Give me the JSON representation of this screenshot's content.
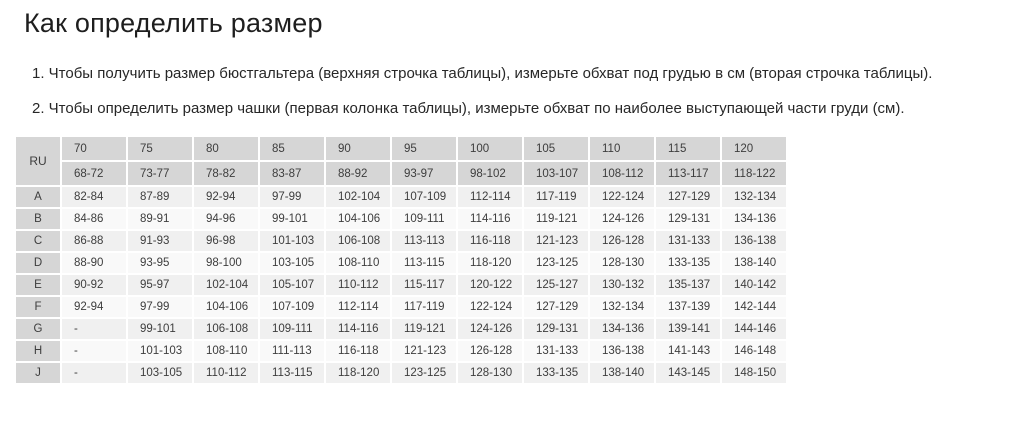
{
  "page": {
    "title": "Как определить размер",
    "instructions": {
      "0": "1. Чтобы получить размер бюстгальтера (верхняя строчка таблицы), измерьте обхват под грудью в см (вторая строчка таблицы).",
      "1": "2. Чтобы определить размер чашки (первая колонка таблицы), измерьте обхват по наиболее выступающей части груди (см)."
    }
  },
  "table": {
    "corner_label": "RU",
    "band_sizes": [
      "70",
      "75",
      "80",
      "85",
      "90",
      "95",
      "100",
      "105",
      "110",
      "115",
      "120"
    ],
    "underbust_ranges": [
      "68-72",
      "73-77",
      "78-82",
      "83-87",
      "88-92",
      "93-97",
      "98-102",
      "103-107",
      "108-112",
      "113-117",
      "118-122"
    ],
    "cup_rows": [
      {
        "cup": "A",
        "values": [
          "82-84",
          "87-89",
          "92-94",
          "97-99",
          "102-104",
          "107-109",
          "112-114",
          "117-119",
          "122-124",
          "127-129",
          "132-134"
        ]
      },
      {
        "cup": "B",
        "values": [
          "84-86",
          "89-91",
          "94-96",
          "99-101",
          "104-106",
          "109-111",
          "114-116",
          "119-121",
          "124-126",
          "129-131",
          "134-136"
        ]
      },
      {
        "cup": "C",
        "values": [
          "86-88",
          "91-93",
          "96-98",
          "101-103",
          "106-108",
          "113-113",
          "116-118",
          "121-123",
          "126-128",
          "131-133",
          "136-138"
        ]
      },
      {
        "cup": "D",
        "values": [
          "88-90",
          "93-95",
          "98-100",
          "103-105",
          "108-110",
          "113-115",
          "118-120",
          "123-125",
          "128-130",
          "133-135",
          "138-140"
        ]
      },
      {
        "cup": "E",
        "values": [
          "90-92",
          "95-97",
          "102-104",
          "105-107",
          "110-112",
          "115-117",
          "120-122",
          "125-127",
          "130-132",
          "135-137",
          "140-142"
        ]
      },
      {
        "cup": "F",
        "values": [
          "92-94",
          "97-99",
          "104-106",
          "107-109",
          "112-114",
          "117-119",
          "122-124",
          "127-129",
          "132-134",
          "137-139",
          "142-144"
        ]
      },
      {
        "cup": "G",
        "values": [
          "-",
          "99-101",
          "106-108",
          "109-111",
          "114-116",
          "119-121",
          "124-126",
          "129-131",
          "134-136",
          "139-141",
          "144-146"
        ]
      },
      {
        "cup": "H",
        "values": [
          "-",
          "101-103",
          "108-110",
          "111-113",
          "116-118",
          "121-123",
          "126-128",
          "131-133",
          "136-138",
          "141-143",
          "146-148"
        ]
      },
      {
        "cup": "J",
        "values": [
          "-",
          "103-105",
          "110-112",
          "113-115",
          "118-120",
          "123-125",
          "128-130",
          "133-135",
          "138-140",
          "143-145",
          "148-150"
        ]
      }
    ]
  },
  "colors": {
    "header_bg": "#d6d6d6",
    "row_odd_bg": "#f0f0f0",
    "row_even_bg": "#f9f9f9",
    "text": "#3d3d3d",
    "title_text": "#1e1e1e"
  }
}
